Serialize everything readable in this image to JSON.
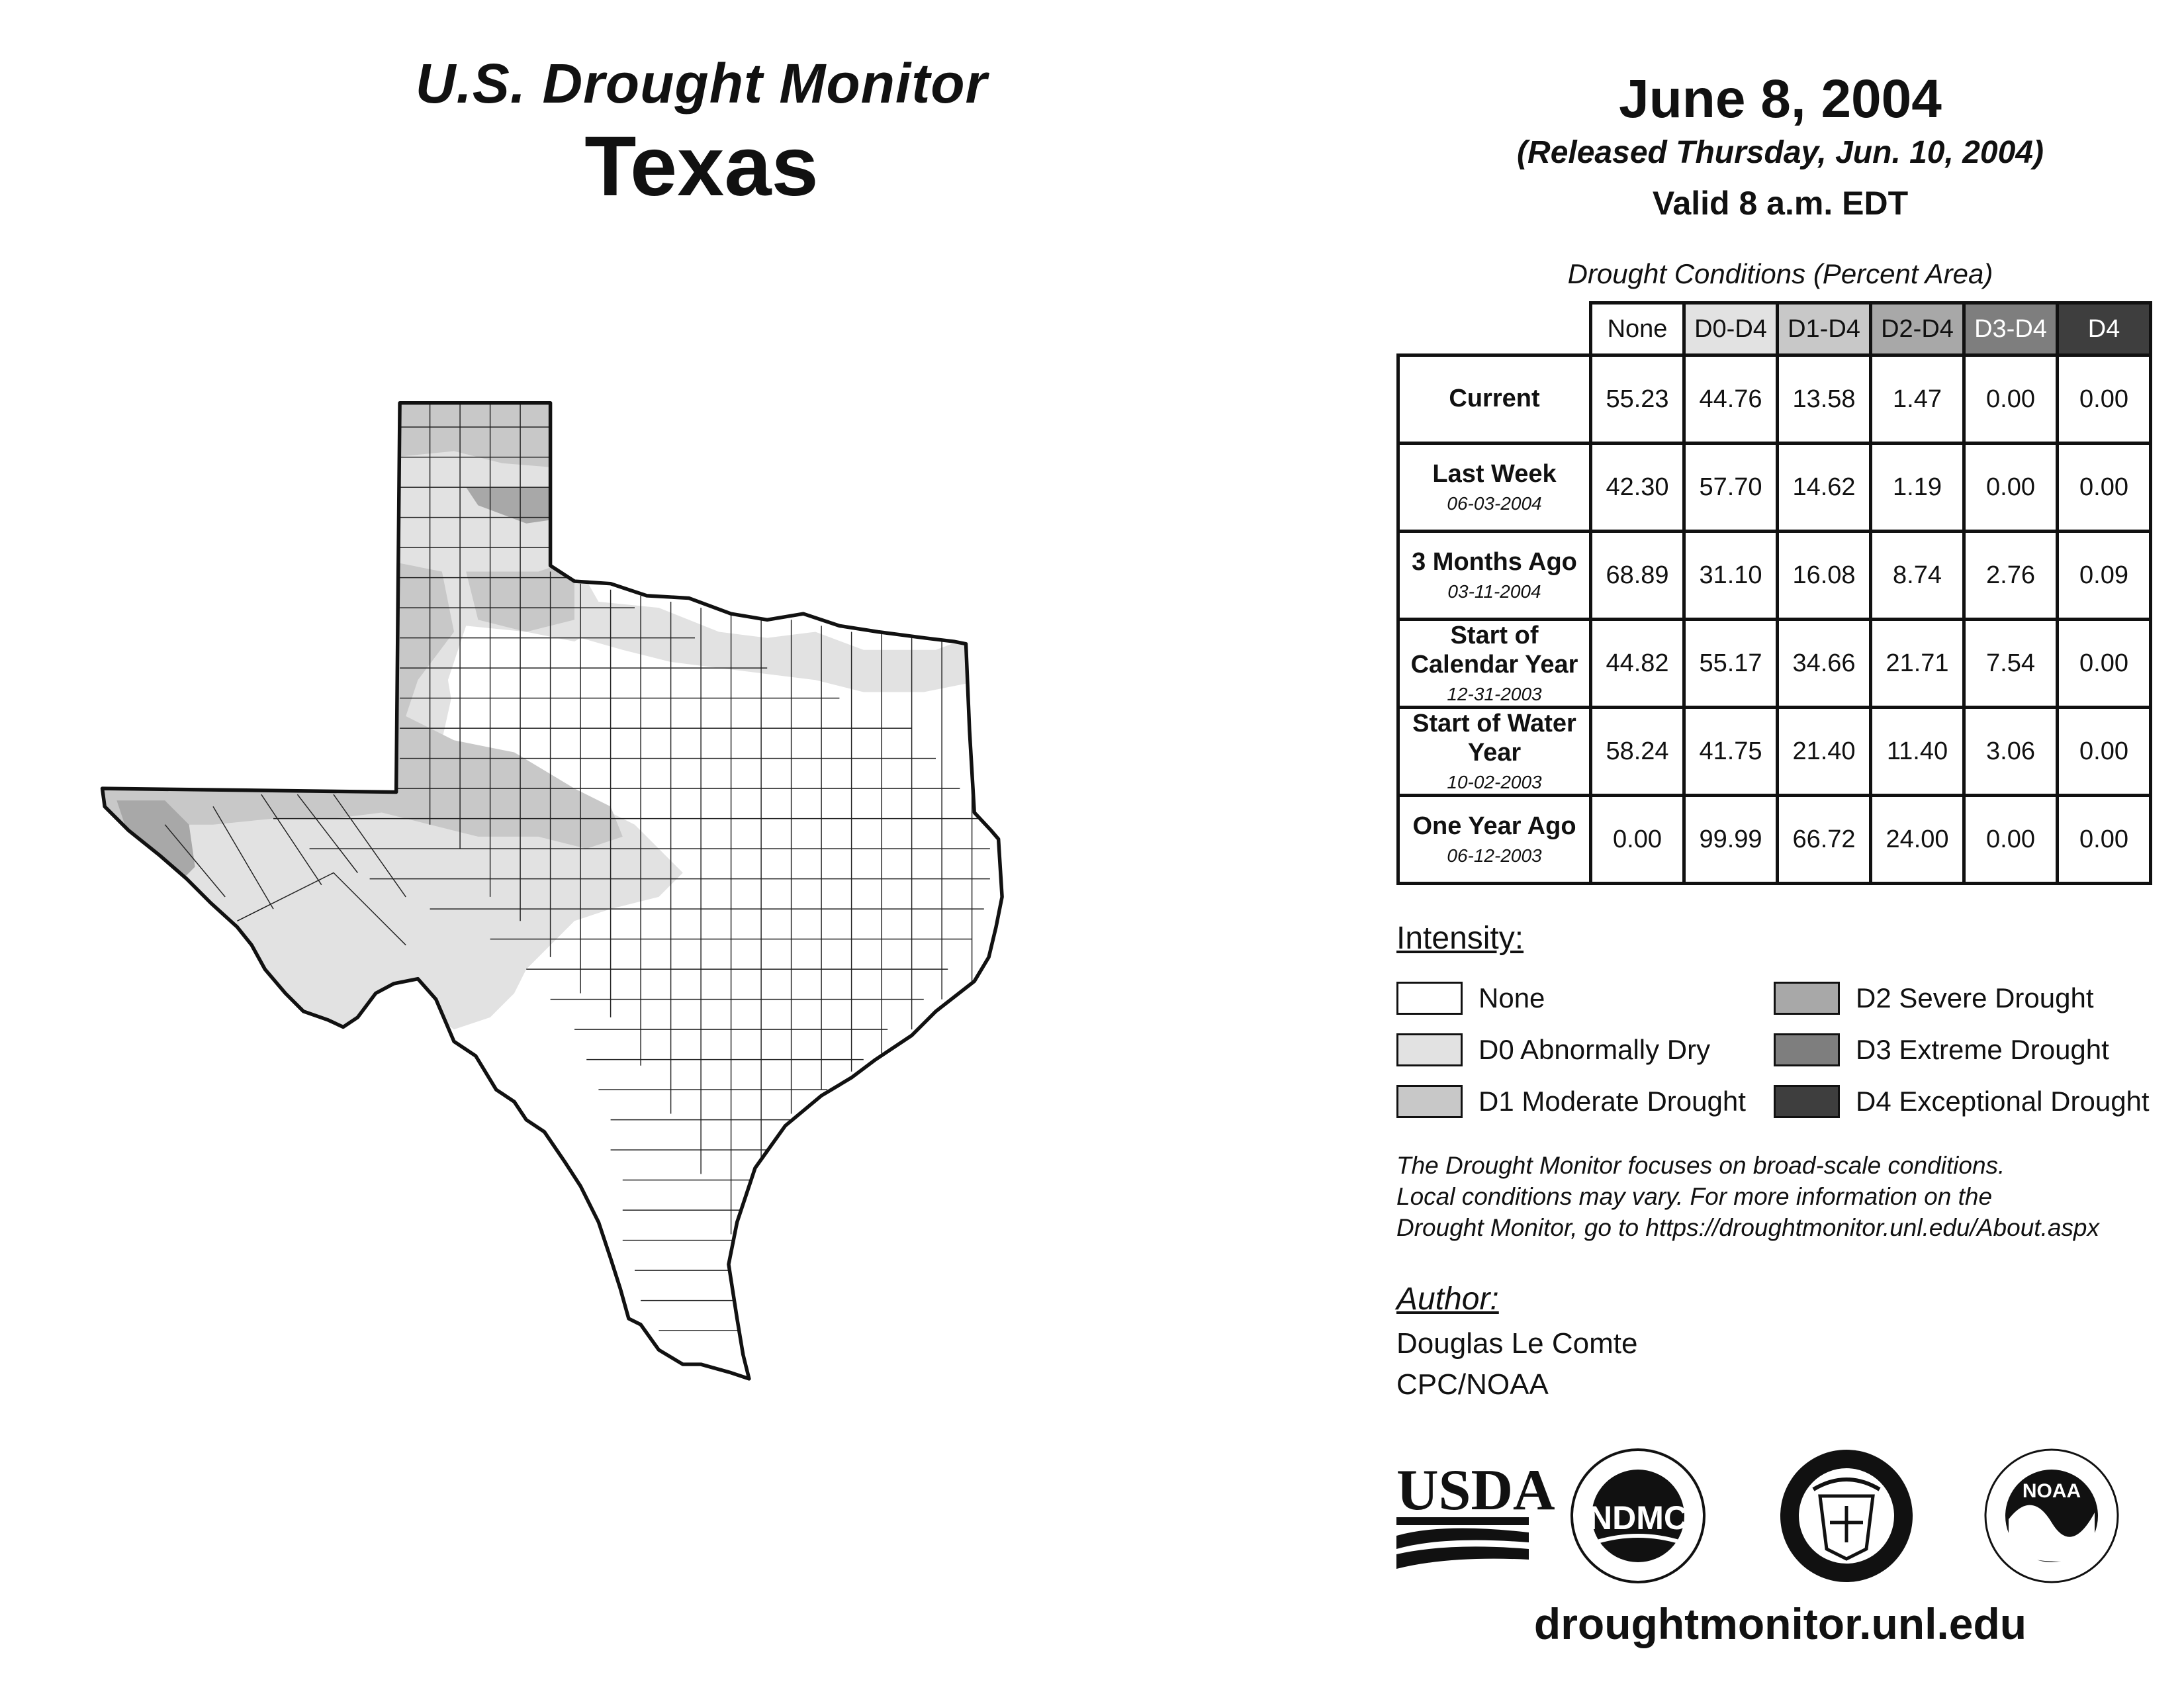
{
  "header": {
    "subtitle": "U.S. Drought Monitor",
    "title": "Texas"
  },
  "map_date": "June 8, 2004",
  "released": "(Released Thursday, Jun. 10, 2004)",
  "valid": "Valid 8 a.m. EDT",
  "table": {
    "caption": "Drought Conditions (Percent Area)",
    "columns": [
      "None",
      "D0-D4",
      "D1-D4",
      "D2-D4",
      "D3-D4",
      "D4"
    ],
    "rows": [
      {
        "label": "Current",
        "date": "",
        "values": [
          "55.23",
          "44.76",
          "13.58",
          "1.47",
          "0.00",
          "0.00"
        ]
      },
      {
        "label": "Last Week",
        "date": "06-03-2004",
        "values": [
          "42.30",
          "57.70",
          "14.62",
          "1.19",
          "0.00",
          "0.00"
        ]
      },
      {
        "label": "3 Months Ago",
        "date": "03-11-2004",
        "values": [
          "68.89",
          "31.10",
          "16.08",
          "8.74",
          "2.76",
          "0.09"
        ]
      },
      {
        "label": "Start of Calendar Year",
        "date": "12-31-2003",
        "values": [
          "44.82",
          "55.17",
          "34.66",
          "21.71",
          "7.54",
          "0.00"
        ]
      },
      {
        "label": "Start of Water Year",
        "date": "10-02-2003",
        "values": [
          "58.24",
          "41.75",
          "21.40",
          "11.40",
          "3.06",
          "0.00"
        ]
      },
      {
        "label": "One Year Ago",
        "date": "06-12-2003",
        "values": [
          "0.00",
          "99.99",
          "66.72",
          "24.00",
          "0.00",
          "0.00"
        ]
      }
    ]
  },
  "legend": {
    "heading": "Intensity:",
    "items": [
      {
        "label": "None",
        "color": "#ffffff"
      },
      {
        "label": "D0 Abnormally Dry",
        "color": "#e2e2e2"
      },
      {
        "label": "D1 Moderate Drought",
        "color": "#c8c8c8"
      },
      {
        "label": "D2 Severe Drought",
        "color": "#a8a8a8"
      },
      {
        "label": "D3 Extreme Drought",
        "color": "#7e7e7e"
      },
      {
        "label": "D4 Exceptional Drought",
        "color": "#3e3e3e"
      }
    ]
  },
  "disclaimer": {
    "line1": "The Drought Monitor focuses on broad-scale conditions.",
    "line2": "Local conditions may vary. For more information on the",
    "line3": "Drought Monitor, go to https://droughtmonitor.unl.edu/About.aspx"
  },
  "author": {
    "heading": "Author:",
    "name": "Douglas Le Comte",
    "org": "CPC/NOAA"
  },
  "logos": {
    "usda": "USDA",
    "ndmc": "NDMC",
    "noaa": "NOAA"
  },
  "site_url": "droughtmonitor.unl.edu"
}
